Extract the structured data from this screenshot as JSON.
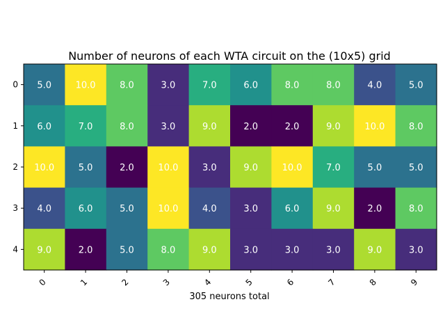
{
  "chart_data": {
    "type": "heatmap",
    "title": "Number of neurons of each WTA circuit on the (10x5) grid",
    "xlabel": "305 neurons total",
    "ylabel": "",
    "x_ticks": [
      "0",
      "1",
      "2",
      "3",
      "4",
      "5",
      "6",
      "7",
      "8",
      "9"
    ],
    "y_ticks": [
      "0",
      "1",
      "2",
      "3",
      "4"
    ],
    "value_range": [
      2,
      10
    ],
    "colormap": "viridis",
    "values": [
      [
        5,
        10,
        8,
        3,
        7,
        6,
        8,
        8,
        4,
        5
      ],
      [
        6,
        7,
        8,
        3,
        9,
        2,
        2,
        9,
        10,
        8
      ],
      [
        10,
        5,
        2,
        10,
        3,
        9,
        10,
        7,
        5,
        5
      ],
      [
        4,
        6,
        5,
        10,
        4,
        3,
        6,
        9,
        2,
        8
      ],
      [
        9,
        2,
        5,
        8,
        9,
        3,
        3,
        3,
        9,
        3
      ]
    ],
    "cell_labels": [
      [
        "5.0",
        "10.0",
        "8.0",
        "3.0",
        "7.0",
        "6.0",
        "8.0",
        "8.0",
        "4.0",
        "5.0"
      ],
      [
        "6.0",
        "7.0",
        "8.0",
        "3.0",
        "9.0",
        "2.0",
        "2.0",
        "9.0",
        "10.0",
        "8.0"
      ],
      [
        "10.0",
        "5.0",
        "2.0",
        "10.0",
        "3.0",
        "9.0",
        "10.0",
        "7.0",
        "5.0",
        "5.0"
      ],
      [
        "4.0",
        "6.0",
        "5.0",
        "10.0",
        "4.0",
        "3.0",
        "6.0",
        "9.0",
        "2.0",
        "8.0"
      ],
      [
        "9.0",
        "2.0",
        "5.0",
        "8.0",
        "9.0",
        "3.0",
        "3.0",
        "3.0",
        "9.0",
        "3.0"
      ]
    ],
    "palette": {
      "2": "#440154",
      "3": "#472d7b",
      "4": "#3b528b",
      "5": "#2c728e",
      "6": "#21918c",
      "7": "#28ae80",
      "8": "#5ec962",
      "9": "#addc30",
      "10": "#fde725"
    }
  }
}
